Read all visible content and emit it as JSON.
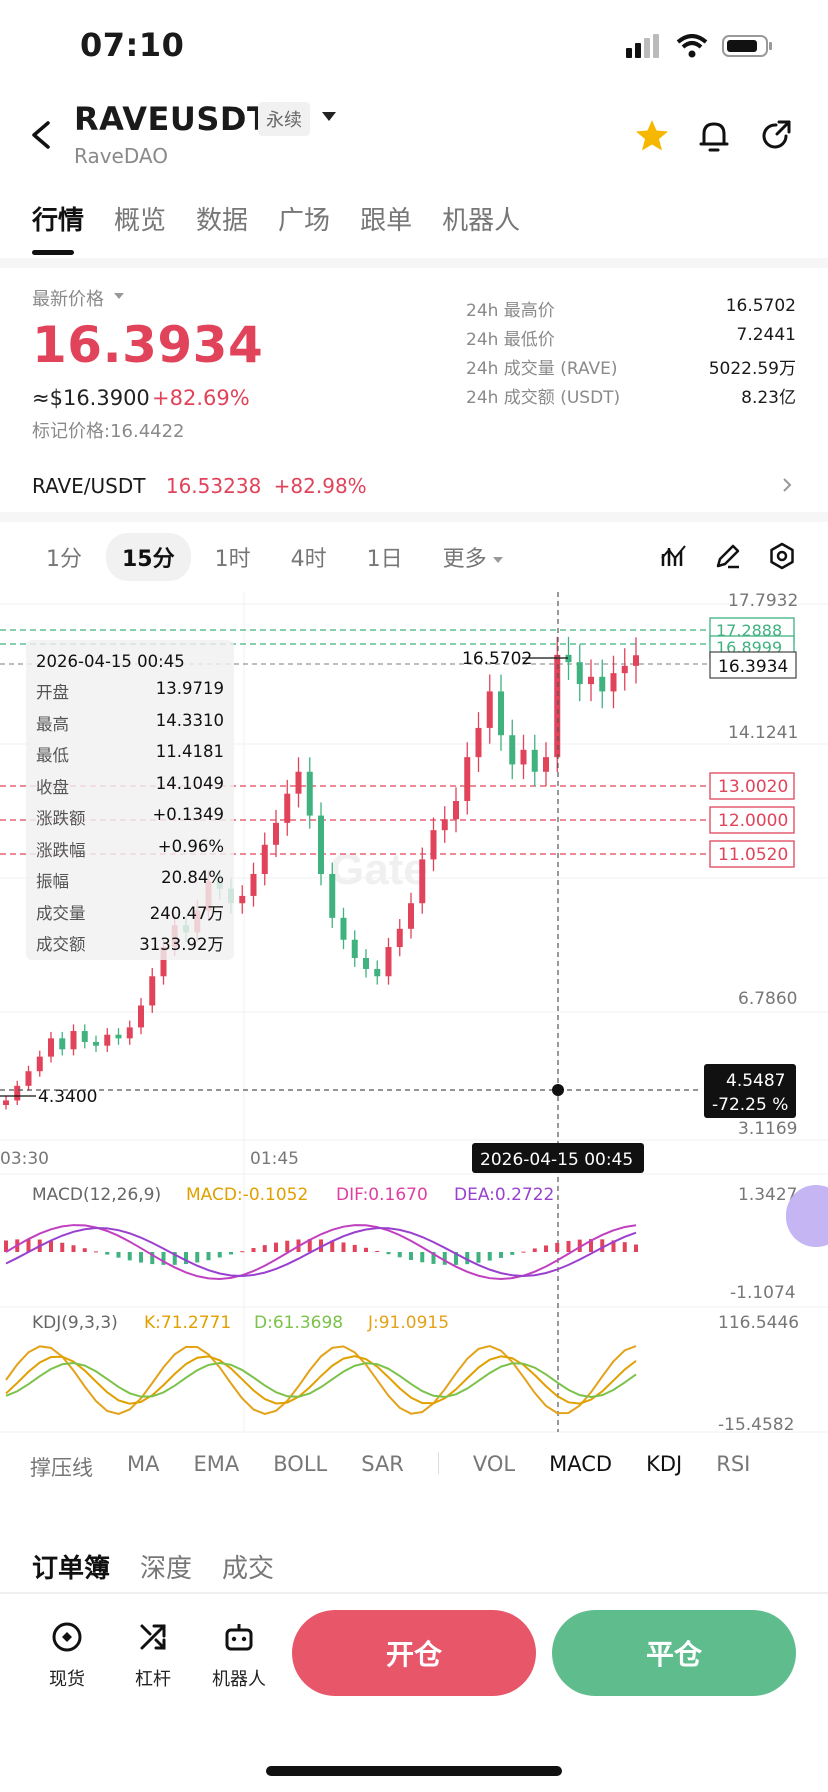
{
  "status_bar": {
    "time": "07:10"
  },
  "header": {
    "title": "RAVEUSDT",
    "tag": "永续",
    "subtitle": "RaveDAO",
    "icons": [
      "back-icon",
      "star-icon",
      "bell-icon",
      "share-icon"
    ],
    "star_color": "#f5b700"
  },
  "tabs": [
    {
      "label": "行情",
      "active": true
    },
    {
      "label": "概览"
    },
    {
      "label": "数据"
    },
    {
      "label": "广场"
    },
    {
      "label": "跟单"
    },
    {
      "label": "机器人"
    }
  ],
  "price": {
    "label": "最新价格",
    "last": "16.3934",
    "usd": "≈$16.3900",
    "change": "+82.69%",
    "mark_label": "标记价格:",
    "mark_value": "16.4422",
    "stats": [
      {
        "k": "24h 最高价",
        "v": "16.5702"
      },
      {
        "k": "24h 最低价",
        "v": "7.2441"
      },
      {
        "k": "24h 成交量 (RAVE)",
        "v": "5022.59万"
      },
      {
        "k": "24h 成交额 (USDT)",
        "v": "8.23亿"
      }
    ]
  },
  "spot": {
    "pair": "RAVE/USDT",
    "price": "16.53238",
    "change": "+82.98%"
  },
  "timeframes": [
    {
      "label": "1分"
    },
    {
      "label": "15分",
      "active": true
    },
    {
      "label": "1时"
    },
    {
      "label": "4时"
    },
    {
      "label": "1日"
    },
    {
      "label": "更多"
    }
  ],
  "chart_data": {
    "type": "candlestick",
    "interval": "15分",
    "price_axis_ticks": [
      "17.7932",
      "14.1241",
      "6.7860",
      "3.1169"
    ],
    "time_ticks": [
      "03:30",
      "01:45"
    ],
    "high_marker": "16.5702",
    "low_marker": "4.3400",
    "current_price": "16.3934",
    "order_lines_green": [
      "17.2888",
      "16.8999"
    ],
    "order_lines_red": [
      "13.0020",
      "12.0000",
      "11.0520"
    ],
    "crosshair": {
      "price": "4.5487",
      "pct": "-72.25 %",
      "time": "2026-04-15 00:45"
    },
    "ohlc_panel": {
      "date": "2026-04-15 00:45",
      "rows": [
        {
          "k": "开盘",
          "v": "13.9719"
        },
        {
          "k": "最高",
          "v": "14.3310"
        },
        {
          "k": "最低",
          "v": "11.4181"
        },
        {
          "k": "收盘",
          "v": "14.1049"
        },
        {
          "k": "涨跌额",
          "v": "+0.1349"
        },
        {
          "k": "涨跌幅",
          "v": "+0.96%"
        },
        {
          "k": "振幅",
          "v": "20.84%"
        },
        {
          "k": "成交量",
          "v": "240.47万"
        },
        {
          "k": "成交额",
          "v": "3133.92万"
        }
      ]
    },
    "candle_closes": [
      4.2,
      4.6,
      5.0,
      5.4,
      5.9,
      5.6,
      6.1,
      5.8,
      5.7,
      6.0,
      5.9,
      6.2,
      6.8,
      7.6,
      8.4,
      9.0,
      8.8,
      9.4,
      10.2,
      10.0,
      9.6,
      9.8,
      10.4,
      11.2,
      11.8,
      12.6,
      13.2,
      12.0,
      10.4,
      9.2,
      8.6,
      8.1,
      7.8,
      7.6,
      8.4,
      8.9,
      9.6,
      10.8,
      11.6,
      11.9,
      12.4,
      13.6,
      14.4,
      15.4,
      14.2,
      13.4,
      13.8,
      13.2,
      13.6,
      16.4,
      16.2,
      15.6,
      15.8,
      15.4,
      15.9,
      16.1,
      16.39
    ],
    "macd": {
      "label": "MACD(12,26,9)",
      "macd": "MACD:-0.1052",
      "dif": "DIF:0.1670",
      "dea": "DEA:0.2722",
      "axis_top": "1.3427",
      "axis_bottom": "-1.1074"
    },
    "kdj": {
      "label": "KDJ(9,3,3)",
      "k": "K:71.2771",
      "d": "D:61.3698",
      "j": "J:91.0915",
      "axis_top": "116.5446",
      "axis_bottom": "-15.4582"
    }
  },
  "watermark": "Gate",
  "indicators": [
    {
      "label": "撑压线"
    },
    {
      "label": "MA"
    },
    {
      "label": "EMA"
    },
    {
      "label": "BOLL"
    },
    {
      "label": "SAR"
    },
    {
      "label": "VOL"
    },
    {
      "label": "MACD",
      "active": true
    },
    {
      "label": "KDJ",
      "active": true
    },
    {
      "label": "RSI"
    }
  ],
  "orderbook_tabs": [
    {
      "label": "订单簿",
      "active": true
    },
    {
      "label": "深度"
    },
    {
      "label": "成交"
    }
  ],
  "bottom_bar": {
    "items": [
      {
        "label": "现货",
        "icon": "spot-icon"
      },
      {
        "label": "杠杆",
        "icon": "leverage-icon"
      },
      {
        "label": "机器人",
        "icon": "robot-icon"
      }
    ],
    "open": "开仓",
    "close": "平仓"
  },
  "colors": {
    "up": "#e0435a",
    "down": "#3fb27f",
    "macd_dif": "#c040c0",
    "kdj_k": "#e0a000",
    "kdj_d": "#7cc24a",
    "kdj_j": "#e3a21a"
  }
}
